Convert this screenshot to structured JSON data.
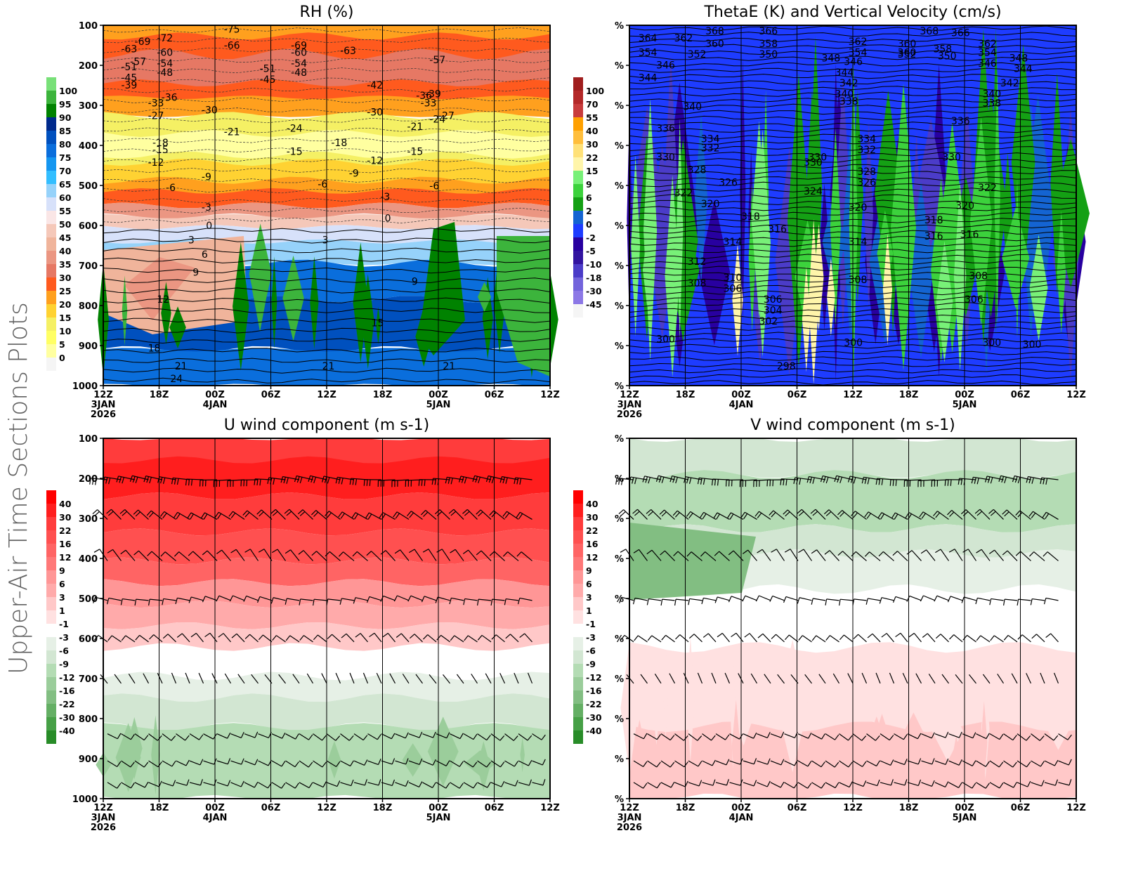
{
  "side_title": "Upper-Air Time Sections Plots",
  "time_axis": {
    "ticks": [
      {
        "label": "12Z",
        "date": "3JAN",
        "year": "2026"
      },
      {
        "label": "18Z",
        "date": "",
        "year": ""
      },
      {
        "label": "00Z",
        "date": "4JAN",
        "year": ""
      },
      {
        "label": "06Z",
        "date": "",
        "year": ""
      },
      {
        "label": "12Z",
        "date": "",
        "year": ""
      },
      {
        "label": "18Z",
        "date": "",
        "year": ""
      },
      {
        "label": "00Z",
        "date": "5JAN",
        "year": ""
      },
      {
        "label": "06Z",
        "date": "",
        "year": ""
      },
      {
        "label": "12Z",
        "date": "",
        "year": ""
      }
    ]
  },
  "chart_data": [
    {
      "id": "rh",
      "type": "heatmap",
      "title": "RH (%)",
      "xlabel": "",
      "ylabel": "",
      "y_ticks": [
        "100",
        "200",
        "300",
        "400",
        "500",
        "600",
        "700",
        "800",
        "900",
        "1000"
      ],
      "ylim": [
        1000,
        100
      ],
      "grid": "vertical lines at each 6h tick",
      "colorbar": {
        "labels": [
          "100",
          "95",
          "90",
          "85",
          "80",
          "75",
          "70",
          "65",
          "60",
          "55",
          "50",
          "45",
          "40",
          "35",
          "30",
          "25",
          "20",
          "15",
          "10",
          "5",
          "0"
        ],
        "colors": [
          "#78e078",
          "#3cb43c",
          "#008200",
          "#002a8c",
          "#0050be",
          "#0a6edc",
          "#1496f0",
          "#32beff",
          "#96d2fa",
          "#d7e1fa",
          "#fae6e6",
          "#f5c8b9",
          "#f0b49b",
          "#eb9682",
          "#e67864",
          "#ff5a1e",
          "#ffa01e",
          "#ffd232",
          "#f5f064",
          "#ffff64",
          "#ffffa0",
          "#f5f5f5"
        ]
      },
      "contour_labels": [
        "-75",
        "-72",
        "-69",
        "-69",
        "-66",
        "-63",
        "-63",
        "-60",
        "-60",
        "-57",
        "-57",
        "-54",
        "-54",
        "-51",
        "-51",
        "-48",
        "-48",
        "-45",
        "-45",
        "-42",
        "-39",
        "-39",
        "-36",
        "-36",
        "-33",
        "-33",
        "-30",
        "-30",
        "-27",
        "-27",
        "-24",
        "-24",
        "-21",
        "-21",
        "-18",
        "-18",
        "-15",
        "-15",
        "-15",
        "-12",
        "-12",
        "-9",
        "-9",
        "-6",
        "-6",
        "-6",
        "-3",
        "-3",
        "0",
        "0",
        "3",
        "3",
        "6",
        "9",
        "9",
        "12",
        "15",
        "18",
        "21",
        "21",
        "21",
        "24"
      ]
    },
    {
      "id": "thetae",
      "type": "heatmap",
      "title": "ThetaE (K) and Vertical Velocity (cm/s)",
      "xlabel": "",
      "ylabel": "",
      "y_ticks": [
        "%",
        "%",
        "%",
        "%",
        "%",
        "%",
        "%",
        "%",
        "%",
        "%"
      ],
      "colorbar": {
        "labels": [
          "100",
          "70",
          "55",
          "40",
          "30",
          "22",
          "15",
          "9",
          "6",
          "2",
          "0",
          "-2",
          "-5",
          "-10",
          "-18",
          "-30",
          "-45"
        ],
        "colors": [
          "#a01e1e",
          "#b42828",
          "#c83c3c",
          "#ffa000",
          "#ffbe3c",
          "#ffe178",
          "#fff5aa",
          "#78f078",
          "#3cd23c",
          "#14a014",
          "#1464d2",
          "#1e3cff",
          "#2800a0",
          "#3214a0",
          "#4b3cc8",
          "#7364dc",
          "#8c78e6",
          "#f5f5f5"
        ]
      },
      "contour_labels": [
        "368",
        "366",
        "364",
        "362",
        "360",
        "358",
        "368",
        "366",
        "362",
        "360",
        "358",
        "362",
        "360",
        "354",
        "352",
        "350",
        "354",
        "352",
        "350",
        "348",
        "346",
        "346",
        "354",
        "346",
        "348",
        "344",
        "344",
        "344",
        "342",
        "342",
        "340",
        "340",
        "340",
        "338",
        "338",
        "336",
        "336",
        "334",
        "334",
        "332",
        "332",
        "330",
        "330",
        "330",
        "330",
        "328",
        "328",
        "326",
        "326",
        "324",
        "322",
        "322",
        "320",
        "320",
        "320",
        "318",
        "318",
        "316",
        "316",
        "316",
        "314",
        "314",
        "312",
        "310",
        "308",
        "308",
        "308",
        "306",
        "306",
        "306",
        "304",
        "302",
        "300",
        "300",
        "300",
        "300",
        "298"
      ]
    },
    {
      "id": "uwind",
      "type": "heatmap",
      "title": "U wind component (m s-1)",
      "xlabel": "",
      "ylabel": "",
      "y_ticks": [
        "100",
        "200",
        "300",
        "400",
        "500",
        "600",
        "700",
        "800",
        "900",
        "1000"
      ],
      "ylim": [
        1000,
        100
      ],
      "colorbar": {
        "labels": [
          "40",
          "30",
          "22",
          "16",
          "12",
          "9",
          "6",
          "3",
          "1",
          "-1",
          "-3",
          "-6",
          "-9",
          "-12",
          "-16",
          "-22",
          "-30",
          "-40"
        ],
        "colors": [
          "#ff0000",
          "#ff1e1e",
          "#ff3c3c",
          "#ff5050",
          "#ff6464",
          "#ff7878",
          "#ff9696",
          "#ffaaaa",
          "#ffc8c8",
          "#ffe1e1",
          "#ffffff",
          "#e6f0e6",
          "#d2e6d2",
          "#b4dcb4",
          "#9bcd9b",
          "#82be82",
          "#64af64",
          "#46a046",
          "#288c28"
        ]
      },
      "wind_barb_levels": [
        "200",
        "300",
        "400",
        "500",
        "600",
        "700",
        "850",
        "900",
        "950"
      ]
    },
    {
      "id": "vwind",
      "type": "heatmap",
      "title": "V wind component (m s-1)",
      "xlabel": "",
      "ylabel": "",
      "y_ticks": [
        "%",
        "%",
        "%",
        "%",
        "%",
        "%",
        "%",
        "%",
        "%",
        "%"
      ],
      "colorbar": {
        "labels": [
          "40",
          "30",
          "22",
          "16",
          "12",
          "9",
          "6",
          "3",
          "1",
          "-1",
          "-3",
          "-6",
          "-9",
          "-12",
          "-16",
          "-22",
          "-30",
          "-40"
        ],
        "colors": [
          "#ff0000",
          "#ff1e1e",
          "#ff3c3c",
          "#ff5050",
          "#ff6464",
          "#ff7878",
          "#ff9696",
          "#ffaaaa",
          "#ffc8c8",
          "#ffe1e1",
          "#ffffff",
          "#e6f0e6",
          "#d2e6d2",
          "#b4dcb4",
          "#9bcd9b",
          "#82be82",
          "#64af64",
          "#46a046",
          "#288c28"
        ]
      },
      "wind_barb_levels": [
        "200",
        "300",
        "400",
        "500",
        "600",
        "700",
        "850",
        "900",
        "950"
      ]
    }
  ]
}
